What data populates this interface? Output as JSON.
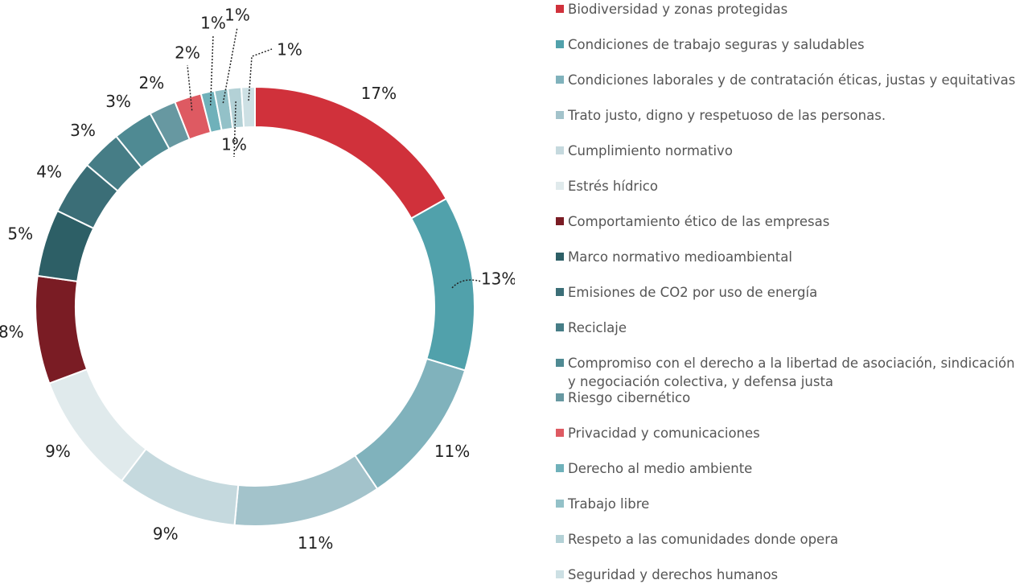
{
  "chart_data": {
    "type": "donut",
    "categories": [
      "Biodiversidad y zonas protegidas",
      "Condiciones de trabajo seguras y saludables",
      "Condiciones laborales y de contratación éticas, justas y equitativas",
      "Trato justo, digno y respetuoso de las personas.",
      "Cumplimiento normativo",
      "Estrés hídrico",
      "Comportamiento ético de las empresas",
      "Marco normativo medioambiental",
      "Emisiones de CO2 por uso de energía",
      "Reciclaje",
      "Compromiso con el derecho a la libertad de asociación, sindicación y negociación colectiva, y defensa justa",
      "Riesgo cibernético",
      "Privacidad y comunicaciones",
      "Derecho al medio ambiente",
      "Trabajo libre",
      "Respeto a las comunidades donde opera",
      "Seguridad y derechos humanos"
    ],
    "values": [
      17,
      13,
      11,
      11,
      9,
      9,
      8,
      5,
      4,
      3,
      3,
      2,
      2,
      1,
      1,
      1,
      1
    ],
    "value_labels": [
      "17%",
      "13%",
      "11%",
      "11%",
      "9%",
      "9%",
      "8%",
      "5%",
      "4%",
      "3%",
      "3%",
      "2%",
      "2%",
      "1%",
      "1%",
      "1%",
      "1%"
    ],
    "colors": [
      "#d0313b",
      "#51a1ab",
      "#80b2bc",
      "#a3c3cb",
      "#c5d9de",
      "#e0eaec",
      "#7a1c24",
      "#2d5f66",
      "#3b6e77",
      "#467d86",
      "#4f8a93",
      "#6798a1",
      "#de5a62",
      "#6fb1ba",
      "#93c1c8",
      "#b3d1d6",
      "#cde0e4"
    ],
    "legend": "right"
  }
}
